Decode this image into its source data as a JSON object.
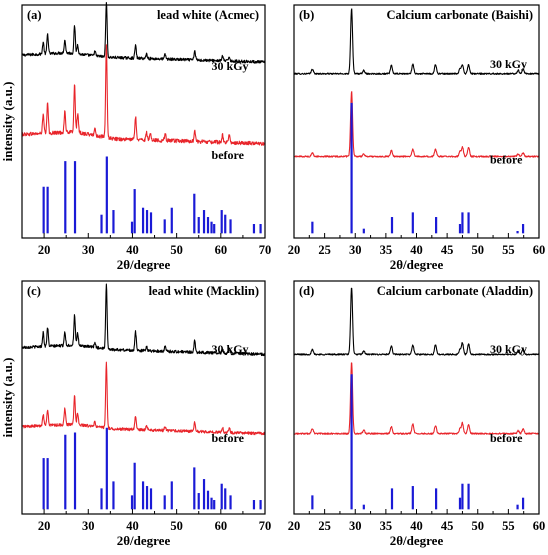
{
  "chart_data": [
    {
      "type": "line",
      "panel_label": "(a)",
      "title": "lead white (Acmec)",
      "xlabel": "2θ/degree",
      "ylabel": "intensity (a.u.)",
      "xlim": [
        15,
        70
      ],
      "xticks": [
        20,
        30,
        40,
        50,
        60,
        70
      ],
      "series": [
        {
          "name": "30 kGy",
          "color": "#000000",
          "base": 0.755,
          "noise": 0.006,
          "bg": [
            [
              15,
              0.03
            ],
            [
              25,
              0.04
            ],
            [
              35,
              0.02
            ],
            [
              70,
              0.0
            ]
          ],
          "peaks": [
            [
              19.8,
              0.05
            ],
            [
              20.8,
              0.085
            ],
            [
              24.7,
              0.055
            ],
            [
              26.9,
              0.12
            ],
            [
              27.6,
              0.04
            ],
            [
              31.5,
              0.02
            ],
            [
              34.1,
              0.24
            ],
            [
              40.7,
              0.055
            ],
            [
              43.2,
              0.02
            ],
            [
              47.4,
              0.02
            ],
            [
              54.1,
              0.04
            ],
            [
              60.4,
              0.02
            ],
            [
              61.9,
              0.02
            ]
          ]
        },
        {
          "name": "before",
          "color": "#e8242a",
          "base": 0.405,
          "noise": 0.008,
          "bg": [
            [
              15,
              0.04
            ],
            [
              27,
              0.05
            ],
            [
              36,
              0.02
            ],
            [
              70,
              0.0
            ]
          ],
          "peaks": [
            [
              19.8,
              0.08
            ],
            [
              20.8,
              0.13
            ],
            [
              24.7,
              0.09
            ],
            [
              26.9,
              0.2
            ],
            [
              27.6,
              0.08
            ],
            [
              31.5,
              0.03
            ],
            [
              34.1,
              0.4
            ],
            [
              40.7,
              0.1
            ],
            [
              43.2,
              0.03
            ],
            [
              44.1,
              0.03
            ],
            [
              47.4,
              0.03
            ],
            [
              54.1,
              0.05
            ],
            [
              60.4,
              0.03
            ],
            [
              61.9,
              0.03
            ]
          ]
        }
      ],
      "reference": {
        "color": "#1a1ad6",
        "base": 0.02,
        "sticks": [
          [
            19.9,
            0.2
          ],
          [
            20.8,
            0.2
          ],
          [
            24.8,
            0.31
          ],
          [
            27.0,
            0.31
          ],
          [
            33.0,
            0.08
          ],
          [
            34.2,
            0.33
          ],
          [
            35.7,
            0.1
          ],
          [
            39.9,
            0.05
          ],
          [
            40.5,
            0.19
          ],
          [
            42.4,
            0.11
          ],
          [
            43.3,
            0.1
          ],
          [
            44.2,
            0.09
          ],
          [
            47.3,
            0.06
          ],
          [
            48.9,
            0.11
          ],
          [
            54.0,
            0.17
          ],
          [
            55.0,
            0.07
          ],
          [
            56.2,
            0.1
          ],
          [
            57.1,
            0.07
          ],
          [
            57.9,
            0.05
          ],
          [
            58.5,
            0.04
          ],
          [
            60.2,
            0.1
          ],
          [
            61.0,
            0.08
          ],
          [
            62.2,
            0.06
          ],
          [
            67.5,
            0.04
          ],
          [
            69.0,
            0.04
          ]
        ]
      }
    },
    {
      "type": "line",
      "panel_label": "(b)",
      "title": "Calcium carbonate (Baishi)",
      "xlabel": "2θ/degree",
      "ylabel": "",
      "xlim": [
        20,
        60
      ],
      "xticks": [
        20,
        25,
        30,
        35,
        40,
        45,
        50,
        55,
        60
      ],
      "series": [
        {
          "name": "30 kGy",
          "color": "#000000",
          "base": 0.705,
          "noise": 0.003,
          "bg": [
            [
              20,
              0.0
            ],
            [
              60,
              0.0
            ]
          ],
          "peaks": [
            [
              23.0,
              0.02
            ],
            [
              29.4,
              0.28
            ],
            [
              31.4,
              0.015
            ],
            [
              35.9,
              0.035
            ],
            [
              39.4,
              0.04
            ],
            [
              43.1,
              0.04
            ],
            [
              47.1,
              0.02
            ],
            [
              47.5,
              0.04
            ],
            [
              48.5,
              0.04
            ],
            [
              56.6,
              0.015
            ],
            [
              57.4,
              0.02
            ]
          ]
        },
        {
          "name": "before",
          "color": "#e8242a",
          "base": 0.35,
          "noise": 0.003,
          "bg": [
            [
              20,
              0.0
            ],
            [
              60,
              0.0
            ]
          ],
          "peaks": [
            [
              23.0,
              0.015
            ],
            [
              29.4,
              0.28
            ],
            [
              31.4,
              0.01
            ],
            [
              35.9,
              0.025
            ],
            [
              39.4,
              0.03
            ],
            [
              43.1,
              0.03
            ],
            [
              47.1,
              0.02
            ],
            [
              47.5,
              0.04
            ],
            [
              48.5,
              0.04
            ],
            [
              56.6,
              0.01
            ],
            [
              57.4,
              0.015
            ]
          ]
        }
      ],
      "reference": {
        "color": "#1a1ad6",
        "base": 0.02,
        "sticks": [
          [
            23.0,
            0.05
          ],
          [
            29.4,
            0.56
          ],
          [
            31.4,
            0.02
          ],
          [
            36.0,
            0.07
          ],
          [
            39.4,
            0.09
          ],
          [
            43.2,
            0.07
          ],
          [
            47.1,
            0.04
          ],
          [
            47.5,
            0.09
          ],
          [
            48.5,
            0.09
          ],
          [
            56.5,
            0.01
          ],
          [
            57.4,
            0.04
          ]
        ]
      }
    },
    {
      "type": "line",
      "panel_label": "(c)",
      "title": "lead white (Macklin)",
      "xlabel": "2θ/degree",
      "ylabel": "intensity (a.u.)",
      "xlim": [
        15,
        70
      ],
      "xticks": [
        20,
        30,
        40,
        50,
        60,
        70
      ],
      "series": [
        {
          "name": "30 kGy",
          "color": "#000000",
          "base": 0.685,
          "noise": 0.006,
          "bg": [
            [
              15,
              0.03
            ],
            [
              27,
              0.04
            ],
            [
              36,
              0.02
            ],
            [
              70,
              0.0
            ]
          ],
          "peaks": [
            [
              19.8,
              0.06
            ],
            [
              20.8,
              0.08
            ],
            [
              24.7,
              0.06
            ],
            [
              26.9,
              0.13
            ],
            [
              27.6,
              0.05
            ],
            [
              31.5,
              0.02
            ],
            [
              34.1,
              0.28
            ],
            [
              40.7,
              0.08
            ],
            [
              43.2,
              0.02
            ],
            [
              47.4,
              0.02
            ],
            [
              54.1,
              0.05
            ],
            [
              60.4,
              0.02
            ],
            [
              61.9,
              0.02
            ]
          ]
        },
        {
          "name": "before",
          "color": "#e8242a",
          "base": 0.345,
          "noise": 0.006,
          "bg": [
            [
              15,
              0.03
            ],
            [
              27,
              0.04
            ],
            [
              36,
              0.02
            ],
            [
              70,
              0.0
            ]
          ],
          "peaks": [
            [
              19.8,
              0.05
            ],
            [
              20.8,
              0.07
            ],
            [
              24.7,
              0.07
            ],
            [
              26.9,
              0.12
            ],
            [
              27.6,
              0.05
            ],
            [
              31.5,
              0.02
            ],
            [
              34.1,
              0.28
            ],
            [
              40.7,
              0.06
            ],
            [
              43.2,
              0.02
            ],
            [
              47.4,
              0.02
            ],
            [
              54.1,
              0.04
            ],
            [
              60.4,
              0.02
            ],
            [
              61.9,
              0.02
            ]
          ]
        }
      ],
      "reference": {
        "color": "#1a1ad6",
        "base": 0.02,
        "sticks": [
          [
            19.9,
            0.22
          ],
          [
            20.8,
            0.22
          ],
          [
            24.8,
            0.32
          ],
          [
            27.0,
            0.33
          ],
          [
            33.0,
            0.09
          ],
          [
            34.2,
            0.35
          ],
          [
            35.7,
            0.12
          ],
          [
            39.9,
            0.06
          ],
          [
            40.5,
            0.2
          ],
          [
            42.4,
            0.12
          ],
          [
            43.3,
            0.1
          ],
          [
            44.2,
            0.09
          ],
          [
            47.3,
            0.06
          ],
          [
            48.9,
            0.12
          ],
          [
            54.0,
            0.18
          ],
          [
            55.0,
            0.07
          ],
          [
            56.2,
            0.13
          ],
          [
            57.1,
            0.08
          ],
          [
            57.9,
            0.05
          ],
          [
            58.5,
            0.04
          ],
          [
            60.2,
            0.11
          ],
          [
            61.0,
            0.09
          ],
          [
            62.2,
            0.06
          ],
          [
            67.5,
            0.04
          ],
          [
            69.0,
            0.04
          ]
        ]
      }
    },
    {
      "type": "line",
      "panel_label": "(d)",
      "title": "Calcium carbonate (Aladdin)",
      "xlabel": "2θ/degree",
      "ylabel": "",
      "xlim": [
        20,
        60
      ],
      "xticks": [
        20,
        25,
        30,
        35,
        40,
        45,
        50,
        55,
        60
      ],
      "series": [
        {
          "name": "30 kGy",
          "color": "#000000",
          "base": 0.685,
          "noise": 0.003,
          "bg": [
            [
              20,
              0.0
            ],
            [
              60,
              0.0
            ]
          ],
          "peaks": [
            [
              23.0,
              0.02
            ],
            [
              29.4,
              0.29
            ],
            [
              31.4,
              0.015
            ],
            [
              35.9,
              0.035
            ],
            [
              39.4,
              0.04
            ],
            [
              43.1,
              0.04
            ],
            [
              47.1,
              0.02
            ],
            [
              47.5,
              0.05
            ],
            [
              48.5,
              0.045
            ],
            [
              56.6,
              0.015
            ],
            [
              57.4,
              0.025
            ]
          ]
        },
        {
          "name": "before",
          "color": "#e8242a",
          "base": 0.345,
          "noise": 0.003,
          "bg": [
            [
              20,
              0.0
            ],
            [
              60,
              0.0
            ]
          ],
          "peaks": [
            [
              23.0,
              0.02
            ],
            [
              29.4,
              0.31
            ],
            [
              31.4,
              0.015
            ],
            [
              35.9,
              0.03
            ],
            [
              39.4,
              0.04
            ],
            [
              43.1,
              0.035
            ],
            [
              47.1,
              0.02
            ],
            [
              47.5,
              0.045
            ],
            [
              48.5,
              0.04
            ],
            [
              56.6,
              0.012
            ],
            [
              57.4,
              0.02
            ]
          ]
        }
      ],
      "reference": {
        "color": "#1a1ad6",
        "base": 0.02,
        "sticks": [
          [
            23.0,
            0.06
          ],
          [
            29.4,
            0.58
          ],
          [
            31.4,
            0.02
          ],
          [
            36.0,
            0.09
          ],
          [
            39.4,
            0.1
          ],
          [
            43.2,
            0.09
          ],
          [
            47.1,
            0.05
          ],
          [
            47.5,
            0.11
          ],
          [
            48.5,
            0.11
          ],
          [
            56.5,
            0.02
          ],
          [
            57.4,
            0.05
          ]
        ]
      }
    }
  ]
}
